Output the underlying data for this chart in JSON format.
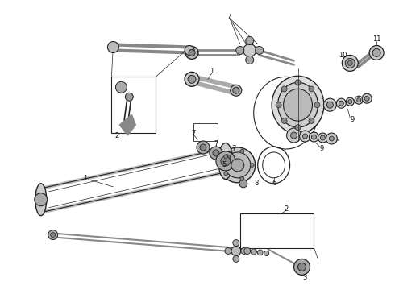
{
  "background_color": "#ffffff",
  "lc": "#444444",
  "dc": "#222222",
  "gc": "#888888",
  "fig_width": 4.9,
  "fig_height": 3.6,
  "dpi": 100
}
